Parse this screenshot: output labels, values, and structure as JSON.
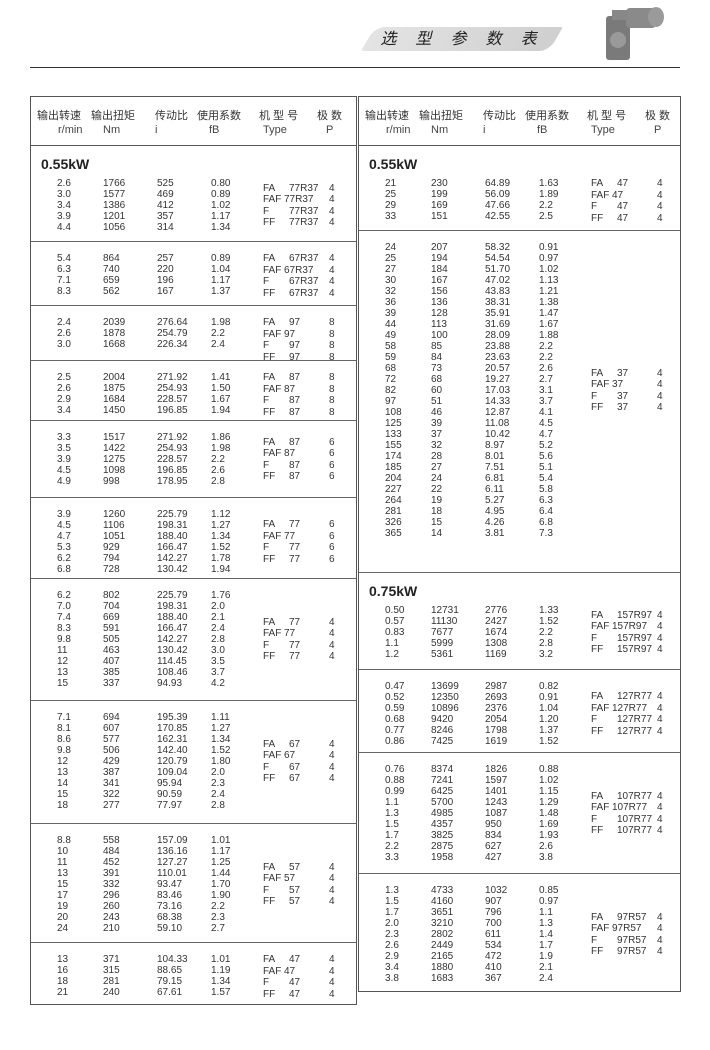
{
  "header": {
    "title": "选 型 参 数 表",
    "image": "gearbox-product-image"
  },
  "columns": {
    "speed": {
      "cn": "输出转速",
      "unit": "r/min"
    },
    "torque": {
      "cn": "输出扭矩",
      "unit": "Nm"
    },
    "ratio": {
      "cn": "传动比",
      "unit": "i"
    },
    "service_factor": {
      "cn": "使用系数",
      "unit": "fB"
    },
    "type": {
      "cn": "机 型 号",
      "unit": "Type"
    },
    "poles": {
      "cn": "极 数",
      "unit": "P"
    }
  },
  "type_prefixes": [
    "FA",
    "FAF",
    "F",
    "FF"
  ],
  "left_column": {
    "groups": [
      {
        "power": "0.55kW",
        "model": "77R37",
        "pole": "4",
        "rows": [
          [
            "2.6",
            "1766",
            "525",
            "0.80"
          ],
          [
            "3.0",
            "1577",
            "469",
            "0.89"
          ],
          [
            "3.4",
            "1386",
            "412",
            "1.02"
          ],
          [
            "3.9",
            "1201",
            "357",
            "1.17"
          ],
          [
            "4.4",
            "1056",
            "314",
            "1.34"
          ]
        ]
      },
      {
        "model": "67R37",
        "pole": "4",
        "rows": [
          [
            "5.4",
            "864",
            "257",
            "0.89"
          ],
          [
            "6.3",
            "740",
            "220",
            "1.04"
          ],
          [
            "7.1",
            "659",
            "196",
            "1.17"
          ],
          [
            "8.3",
            "562",
            "167",
            "1.37"
          ]
        ]
      },
      {
        "model": "97",
        "pole": "8",
        "rows": [
          [
            "2.4",
            "2039",
            "276.64",
            "1.98"
          ],
          [
            "2.6",
            "1878",
            "254.79",
            "2.2"
          ],
          [
            "3.0",
            "1668",
            "226.34",
            "2.4"
          ]
        ]
      },
      {
        "model": "87",
        "pole": "8",
        "rows": [
          [
            "2.5",
            "2004",
            "271.92",
            "1.41"
          ],
          [
            "2.6",
            "1875",
            "254.93",
            "1.50"
          ],
          [
            "2.9",
            "1684",
            "228.57",
            "1.67"
          ],
          [
            "3.4",
            "1450",
            "196.85",
            "1.94"
          ]
        ]
      },
      {
        "model": "87",
        "pole": "6",
        "rows": [
          [
            "3.3",
            "1517",
            "271.92",
            "1.86"
          ],
          [
            "3.5",
            "1422",
            "254.93",
            "1.98"
          ],
          [
            "3.9",
            "1275",
            "228.57",
            "2.2"
          ],
          [
            "4.5",
            "1098",
            "196.85",
            "2.6"
          ],
          [
            "4.9",
            "998",
            "178.95",
            "2.8"
          ]
        ]
      },
      {
        "model": "77",
        "pole": "6",
        "rows": [
          [
            "3.9",
            "1260",
            "225.79",
            "1.12"
          ],
          [
            "4.5",
            "1106",
            "198.31",
            "1.27"
          ],
          [
            "4.7",
            "1051",
            "188.40",
            "1.34"
          ],
          [
            "5.3",
            "929",
            "166.47",
            "1.52"
          ],
          [
            "6.2",
            "794",
            "142.27",
            "1.78"
          ],
          [
            "6.8",
            "728",
            "130.42",
            "1.94"
          ]
        ]
      },
      {
        "model": "77",
        "pole": "4",
        "rows": [
          [
            "6.2",
            "802",
            "225.79",
            "1.76"
          ],
          [
            "7.0",
            "704",
            "198.31",
            "2.0"
          ],
          [
            "7.4",
            "669",
            "188.40",
            "2.1"
          ],
          [
            "8.3",
            "591",
            "166.47",
            "2.4"
          ],
          [
            "9.8",
            "505",
            "142.27",
            "2.8"
          ],
          [
            "11",
            "463",
            "130.42",
            "3.0"
          ],
          [
            "12",
            "407",
            "114.45",
            "3.5"
          ],
          [
            "13",
            "385",
            "108.46",
            "3.7"
          ],
          [
            "15",
            "337",
            "94.93",
            "4.2"
          ]
        ]
      },
      {
        "model": "67",
        "pole": "4",
        "rows": [
          [
            "7.1",
            "694",
            "195.39",
            "1.11"
          ],
          [
            "8.1",
            "607",
            "170.85",
            "1.27"
          ],
          [
            "8.6",
            "577",
            "162.31",
            "1.34"
          ],
          [
            "9.8",
            "506",
            "142.40",
            "1.52"
          ],
          [
            "12",
            "429",
            "120.79",
            "1.80"
          ],
          [
            "13",
            "387",
            "109.04",
            "2.0"
          ],
          [
            "14",
            "341",
            "95.94",
            "2.3"
          ],
          [
            "15",
            "322",
            "90.59",
            "2.4"
          ],
          [
            "18",
            "277",
            "77.97",
            "2.8"
          ]
        ]
      },
      {
        "model": "57",
        "pole": "4",
        "rows": [
          [
            "8.8",
            "558",
            "157.09",
            "1.01"
          ],
          [
            "10",
            "484",
            "136.16",
            "1.17"
          ],
          [
            "11",
            "452",
            "127.27",
            "1.25"
          ],
          [
            "13",
            "391",
            "110.01",
            "1.44"
          ],
          [
            "15",
            "332",
            "93.47",
            "1.70"
          ],
          [
            "17",
            "296",
            "83.46",
            "1.90"
          ],
          [
            "19",
            "260",
            "73.16",
            "2.2"
          ],
          [
            "20",
            "243",
            "68.38",
            "2.3"
          ],
          [
            "24",
            "210",
            "59.10",
            "2.7"
          ]
        ]
      },
      {
        "model": "47",
        "pole": "4",
        "rows": [
          [
            "13",
            "371",
            "104.33",
            "1.01"
          ],
          [
            "16",
            "315",
            "88.65",
            "1.19"
          ],
          [
            "18",
            "281",
            "79.15",
            "1.34"
          ],
          [
            "21",
            "240",
            "67.61",
            "1.57"
          ]
        ]
      }
    ]
  },
  "right_column": {
    "groups": [
      {
        "power": "0.55kW",
        "model": "47",
        "pole": "4",
        "rows": [
          [
            "21",
            "230",
            "64.89",
            "1.63"
          ],
          [
            "25",
            "199",
            "56.09",
            "1.89"
          ],
          [
            "29",
            "169",
            "47.66",
            "2.2"
          ],
          [
            "33",
            "151",
            "42.55",
            "2.5"
          ]
        ]
      },
      {
        "model": "37",
        "pole": "4",
        "rows": [
          [
            "24",
            "207",
            "58.32",
            "0.91"
          ],
          [
            "25",
            "194",
            "54.54",
            "0.97"
          ],
          [
            "27",
            "184",
            "51.70",
            "1.02"
          ],
          [
            "30",
            "167",
            "47.02",
            "1.13"
          ],
          [
            "32",
            "156",
            "43.83",
            "1.21"
          ],
          [
            "36",
            "136",
            "38.31",
            "1.38"
          ],
          [
            "39",
            "128",
            "35.91",
            "1.47"
          ],
          [
            "44",
            "113",
            "31.69",
            "1.67"
          ],
          [
            "49",
            "100",
            "28.09",
            "1.88"
          ],
          [
            "58",
            "85",
            "23.88",
            "2.2"
          ],
          [
            "59",
            "84",
            "23.63",
            "2.2"
          ],
          [
            "68",
            "73",
            "20.57",
            "2.6"
          ],
          [
            "72",
            "68",
            "19.27",
            "2.7"
          ],
          [
            "82",
            "60",
            "17.03",
            "3.1"
          ],
          [
            "97",
            "51",
            "14.33",
            "3.7"
          ],
          [
            "108",
            "46",
            "12.87",
            "4.1"
          ],
          [
            "125",
            "39",
            "11.08",
            "4.5"
          ],
          [
            "133",
            "37",
            "10.42",
            "4.7"
          ],
          [
            "155",
            "32",
            "8.97",
            "5.2"
          ],
          [
            "174",
            "28",
            "8.01",
            "5.6"
          ],
          [
            "185",
            "27",
            "7.51",
            "5.1"
          ],
          [
            "204",
            "24",
            "6.81",
            "5.4"
          ],
          [
            "227",
            "22",
            "6.11",
            "5.8"
          ],
          [
            "264",
            "19",
            "5.27",
            "6.3"
          ],
          [
            "281",
            "18",
            "4.95",
            "6.4"
          ],
          [
            "326",
            "15",
            "4.26",
            "6.8"
          ],
          [
            "365",
            "14",
            "3.81",
            "7.3"
          ]
        ]
      },
      {
        "power": "0.75kW",
        "model": "157R97",
        "pole": "4",
        "rows": [
          [
            "0.50",
            "12731",
            "2776",
            "1.33"
          ],
          [
            "0.57",
            "11130",
            "2427",
            "1.52"
          ],
          [
            "0.83",
            "7677",
            "1674",
            "2.2"
          ],
          [
            "1.1",
            "5999",
            "1308",
            "2.8"
          ],
          [
            "1.2",
            "5361",
            "1169",
            "3.2"
          ]
        ]
      },
      {
        "model": "127R77",
        "pole": "4",
        "rows": [
          [
            "0.47",
            "13699",
            "2987",
            "0.82"
          ],
          [
            "0.52",
            "12350",
            "2693",
            "0.91"
          ],
          [
            "0.59",
            "10896",
            "2376",
            "1.04"
          ],
          [
            "0.68",
            "9420",
            "2054",
            "1.20"
          ],
          [
            "0.77",
            "8246",
            "1798",
            "1.37"
          ],
          [
            "0.86",
            "7425",
            "1619",
            "1.52"
          ]
        ]
      },
      {
        "model": "107R77",
        "pole": "4",
        "rows": [
          [
            "0.76",
            "8374",
            "1826",
            "0.88"
          ],
          [
            "0.88",
            "7241",
            "1597",
            "1.02"
          ],
          [
            "0.99",
            "6425",
            "1401",
            "1.15"
          ],
          [
            "1.1",
            "5700",
            "1243",
            "1.29"
          ],
          [
            "1.3",
            "4985",
            "1087",
            "1.48"
          ],
          [
            "1.5",
            "4357",
            "950",
            "1.69"
          ],
          [
            "1.7",
            "3825",
            "834",
            "1.93"
          ],
          [
            "2.2",
            "2875",
            "627",
            "2.6"
          ],
          [
            "3.3",
            "1958",
            "427",
            "3.8"
          ]
        ]
      },
      {
        "model": "97R57",
        "pole": "4",
        "rows": [
          [
            "1.3",
            "4733",
            "1032",
            "0.85"
          ],
          [
            "1.5",
            "4160",
            "907",
            "0.97"
          ],
          [
            "1.7",
            "3651",
            "796",
            "1.1"
          ],
          [
            "2.0",
            "3210",
            "700",
            "1.3"
          ],
          [
            "2.3",
            "2802",
            "611",
            "1.4"
          ],
          [
            "2.6",
            "2449",
            "534",
            "1.7"
          ],
          [
            "2.9",
            "2165",
            "472",
            "1.9"
          ],
          [
            "3.4",
            "1880",
            "410",
            "2.1"
          ],
          [
            "3.8",
            "1683",
            "367",
            "2.4"
          ]
        ]
      }
    ]
  }
}
